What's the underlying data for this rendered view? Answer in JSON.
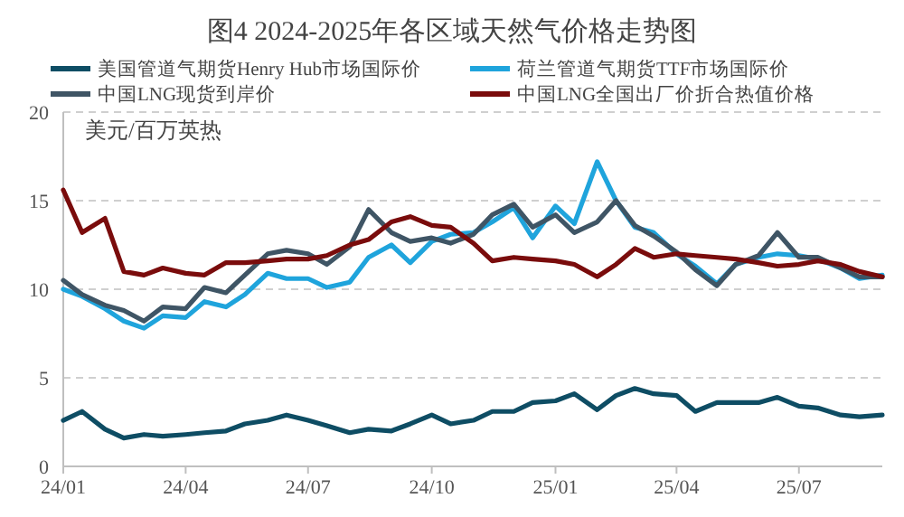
{
  "chart_data": {
    "type": "line",
    "title": "图4 2024-2025年各区域天然气价格走势图",
    "ylabel": "美元/百万英热",
    "x": [
      "2024-01-01",
      "2024-01-15",
      "2024-02-01",
      "2024-02-15",
      "2024-03-01",
      "2024-03-15",
      "2024-04-01",
      "2024-04-15",
      "2024-05-01",
      "2024-05-15",
      "2024-06-01",
      "2024-06-15",
      "2024-07-01",
      "2024-07-15",
      "2024-08-01",
      "2024-08-15",
      "2024-09-01",
      "2024-09-15",
      "2024-10-01",
      "2024-10-15",
      "2024-11-01",
      "2024-11-15",
      "2024-12-01",
      "2024-12-15",
      "2025-01-01",
      "2025-01-15",
      "2025-02-01",
      "2025-02-15",
      "2025-03-01",
      "2025-03-15",
      "2025-04-01",
      "2025-04-15",
      "2025-05-01",
      "2025-05-15",
      "2025-06-01",
      "2025-06-15",
      "2025-07-01",
      "2025-07-15",
      "2025-08-01",
      "2025-08-15",
      "2025-09-01"
    ],
    "series": [
      {
        "name": "美国管道气期货Henry Hub市场国际价",
        "color": "#0e4d64",
        "values": [
          2.6,
          3.1,
          2.1,
          1.6,
          1.8,
          1.7,
          1.8,
          1.9,
          2.0,
          2.4,
          2.6,
          2.9,
          2.6,
          2.3,
          1.9,
          2.1,
          2.0,
          2.4,
          2.9,
          2.4,
          2.6,
          3.1,
          3.1,
          3.6,
          3.7,
          4.1,
          3.2,
          4.0,
          4.4,
          4.1,
          4.0,
          3.1,
          3.6,
          3.6,
          3.6,
          3.9,
          3.4,
          3.3,
          2.9,
          2.8,
          2.9
        ]
      },
      {
        "name": "荷兰管道气期货TTF市场国际价",
        "color": "#1fa4dc",
        "values": [
          10.0,
          9.6,
          8.9,
          8.2,
          7.8,
          8.5,
          8.4,
          9.3,
          9.0,
          9.7,
          10.9,
          10.6,
          10.6,
          10.1,
          10.4,
          11.8,
          12.5,
          11.5,
          12.7,
          13.1,
          13.2,
          13.8,
          14.6,
          12.9,
          14.7,
          13.7,
          17.2,
          15.0,
          13.5,
          13.2,
          12.0,
          11.3,
          10.3,
          11.4,
          11.8,
          12.0,
          11.9,
          11.7,
          11.2,
          10.6,
          10.8
        ]
      },
      {
        "name": "中国LNG现货到岸价",
        "color": "#3f5565",
        "values": [
          10.5,
          9.7,
          9.1,
          8.8,
          8.2,
          9.0,
          8.9,
          10.1,
          9.8,
          10.8,
          12.0,
          12.2,
          12.0,
          11.4,
          12.4,
          14.5,
          13.2,
          12.7,
          12.9,
          12.6,
          13.1,
          14.2,
          14.8,
          13.5,
          14.2,
          13.2,
          13.8,
          15.0,
          13.6,
          13.0,
          12.1,
          11.1,
          10.2,
          11.4,
          11.9,
          13.2,
          11.8,
          11.8,
          11.2,
          10.7,
          10.7
        ]
      },
      {
        "name": "中国LNG全国出厂价折合热值价格",
        "color": "#7a0c0c",
        "values": [
          15.6,
          13.2,
          14.0,
          11.0,
          10.8,
          11.2,
          10.9,
          10.8,
          11.5,
          11.5,
          11.6,
          11.7,
          11.7,
          11.9,
          12.5,
          12.8,
          13.8,
          14.1,
          13.6,
          13.5,
          12.6,
          11.6,
          11.8,
          11.7,
          11.6,
          11.4,
          10.7,
          11.4,
          12.3,
          11.8,
          12.0,
          11.9,
          11.8,
          11.7,
          11.5,
          11.3,
          11.4,
          11.6,
          11.4,
          11.0,
          10.7
        ]
      }
    ],
    "xlim": [
      "2024-01-01",
      "2025-09-01"
    ],
    "xticks": [
      {
        "value": "2024-01-01",
        "label": "24/01"
      },
      {
        "value": "2024-04-01",
        "label": "24/04"
      },
      {
        "value": "2024-07-01",
        "label": "24/07"
      },
      {
        "value": "2024-10-01",
        "label": "24/10"
      },
      {
        "value": "2025-01-01",
        "label": "25/01"
      },
      {
        "value": "2025-04-01",
        "label": "25/04"
      },
      {
        "value": "2025-07-01",
        "label": "25/07"
      }
    ],
    "ylim": [
      0,
      20
    ],
    "yticks": [
      0,
      5,
      10,
      15,
      20
    ],
    "grid": "y",
    "legend": "top"
  }
}
